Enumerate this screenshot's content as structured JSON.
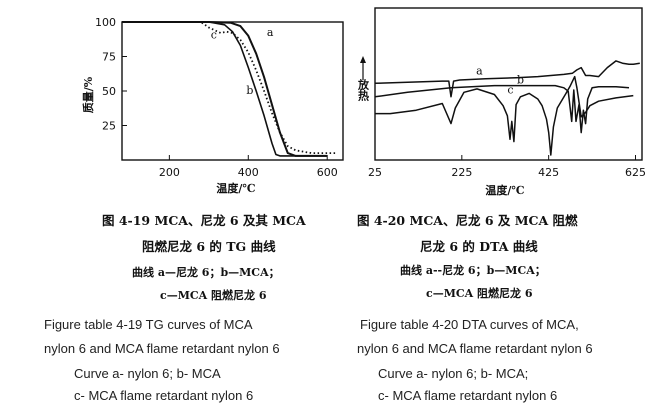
{
  "chart_data": [
    {
      "type": "line",
      "xlabel": "温度/℃",
      "ylabel": "质量/%",
      "xticks": [
        200,
        400,
        600
      ],
      "yticks": [
        25,
        50,
        75,
        100
      ],
      "xlim": [
        80,
        640
      ],
      "ylim": [
        0,
        100
      ],
      "series": [
        {
          "name": "a",
          "style": "solid",
          "x": [
            80,
            200,
            300,
            355,
            380,
            400,
            420,
            440,
            460,
            480,
            500,
            520,
            600
          ],
          "y": [
            100,
            100,
            100,
            99.5,
            97,
            90,
            77,
            60,
            40,
            20,
            5,
            3,
            3
          ]
        },
        {
          "name": "b",
          "style": "solid",
          "x": [
            80,
            200,
            300,
            340,
            360,
            380,
            400,
            420,
            440,
            460,
            470,
            480,
            520,
            600
          ],
          "y": [
            100,
            100,
            100,
            98,
            93,
            83,
            67,
            50,
            32,
            12,
            4,
            3,
            3,
            3
          ]
        },
        {
          "name": "c",
          "style": "dotted",
          "x": [
            80,
            200,
            280,
            300,
            330,
            345,
            360,
            380,
            400,
            420,
            440,
            460,
            480,
            500,
            520,
            560,
            620
          ],
          "y": [
            100,
            100,
            100,
            96,
            92,
            93,
            92,
            87,
            78,
            65,
            50,
            34,
            20,
            10,
            7,
            5,
            5
          ]
        }
      ]
    },
    {
      "type": "line",
      "xlabel": "温度/℃",
      "ylabel": "放热",
      "xticks": [
        25,
        225,
        425,
        625
      ],
      "xlim": [
        25,
        640
      ],
      "series": [
        {
          "name": "a",
          "x": [
            25,
            100,
            180,
            195,
            200,
            206,
            220,
            280,
            350,
            400,
            430,
            460,
            480,
            490,
            500,
            510,
            520,
            540,
            560,
            580,
            595,
            610,
            620,
            635
          ],
          "y": [
            64,
            65,
            66,
            66,
            52,
            66,
            67,
            68,
            69,
            70,
            71,
            72,
            73,
            76,
            78,
            71,
            71,
            70,
            78,
            84,
            82,
            81,
            81,
            82
          ]
        },
        {
          "name": "b",
          "x": [
            25,
            100,
            200,
            300,
            400,
            420,
            440,
            460,
            470,
            478,
            483,
            488,
            495,
            500,
            505,
            510,
            515,
            525,
            540,
            560,
            580,
            610
          ],
          "y": [
            52,
            56,
            60,
            62,
            62,
            62,
            62,
            60,
            57,
            30,
            58,
            30,
            45,
            20,
            40,
            28,
            50,
            60,
            61,
            61,
            61,
            60
          ]
        },
        {
          "name": "c",
          "x": [
            25,
            60,
            120,
            180,
            200,
            210,
            230,
            260,
            300,
            320,
            330,
            336,
            340,
            345,
            350,
            360,
            380,
            400,
            410,
            420,
            425,
            430,
            436,
            445,
            465,
            475,
            485,
            490,
            500,
            510,
            520,
            540,
            580,
            620
          ],
          "y": [
            37,
            37,
            40,
            46,
            28,
            42,
            56,
            59,
            54,
            44,
            35,
            14,
            30,
            12,
            45,
            52,
            55,
            50,
            44,
            32,
            20,
            0,
            25,
            42,
            55,
            62,
            70,
            60,
            34,
            38,
            44,
            48,
            51,
            53
          ]
        }
      ]
    }
  ],
  "labels": {
    "fig1": {
      "a": "a",
      "b": "b",
      "c": "c"
    },
    "fig2": {
      "a": "a",
      "b": "b",
      "c": "c"
    }
  },
  "captions": {
    "fig1_cn_line1": "图 4-19   MCA、尼龙 6 及其 MCA",
    "fig1_cn_line2": "阻燃尼龙 6 的 TG 曲线",
    "fig1_cn_line3": "曲线   a—尼龙 6；b—MCA；",
    "fig1_cn_line4": "c—MCA 阻燃尼龙 6",
    "fig2_cn_line1": "图 4-20   MCA、尼龙 6 及 MCA 阻燃",
    "fig2_cn_line2": "尼龙 6 的 DTA 曲线",
    "fig2_cn_line3": "曲线   a--尼龙 6；b—MCA；",
    "fig2_cn_line4": "c—MCA 阻燃尼龙 6",
    "fig1_en_line1": "Figure table 4-19 TG curves of MCA",
    "fig1_en_line2": "nylon 6 and MCA flame retardant nylon 6",
    "fig1_en_line3": "Curve a- nylon 6; b- MCA",
    "fig1_en_line4": "c- MCA flame retardant nylon 6",
    "fig2_en_line1": "Figure table 4-20 DTA curves of MCA,",
    "fig2_en_line2": "nylon 6 and MCA flame retardant nylon 6",
    "fig2_en_line3": "Curve a- nylon 6; b- MCA;",
    "fig2_en_line4": "c- MCA flame retardant nylon 6"
  }
}
